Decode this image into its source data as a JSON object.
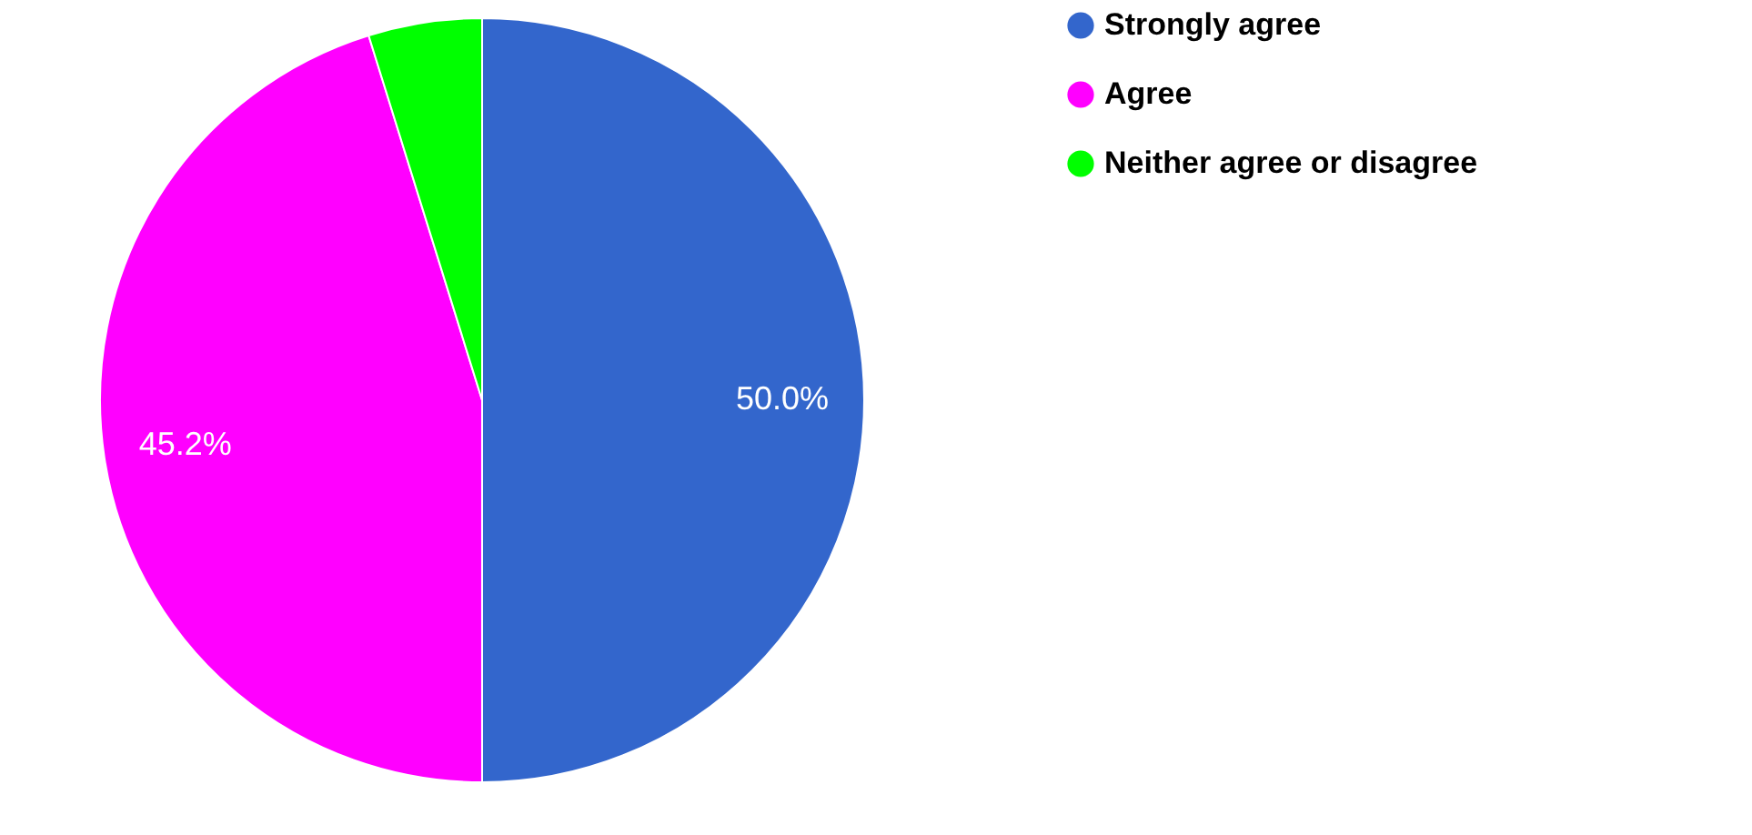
{
  "chart_data": {
    "type": "pie",
    "categories": [
      "Strongly agree",
      "Agree",
      "Neither agree or disagree"
    ],
    "values": [
      50.0,
      45.2,
      4.8
    ],
    "colors": [
      "#3366cc",
      "#ff00ff",
      "#00ff00"
    ],
    "value_labels": [
      "50.0%",
      "45.2%",
      null
    ],
    "legend": "top right"
  }
}
